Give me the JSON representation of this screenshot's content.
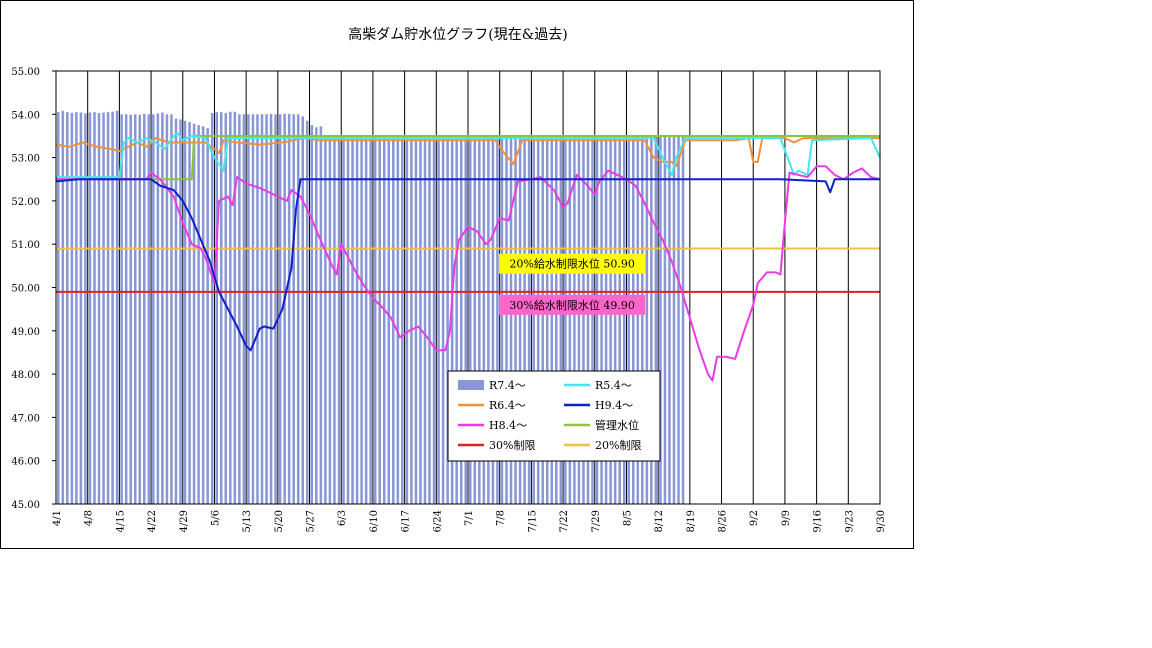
{
  "chart_data": {
    "type": "line",
    "title": "高柴ダム貯水位グラフ(現在&過去)",
    "ylim": [
      45.0,
      55.0
    ],
    "y_ticks": [
      "45.00",
      "46.00",
      "47.00",
      "48.00",
      "49.00",
      "50.00",
      "51.00",
      "52.00",
      "53.00",
      "54.00",
      "55.00"
    ],
    "x_ticks": [
      {
        "label": "4/1",
        "day": 0
      },
      {
        "label": "4/8",
        "day": 7
      },
      {
        "label": "4/15",
        "day": 14
      },
      {
        "label": "4/22",
        "day": 21
      },
      {
        "label": "4/29",
        "day": 28
      },
      {
        "label": "5/6",
        "day": 35
      },
      {
        "label": "5/13",
        "day": 42
      },
      {
        "label": "5/20",
        "day": 49
      },
      {
        "label": "5/27",
        "day": 56
      },
      {
        "label": "6/3",
        "day": 63
      },
      {
        "label": "6/10",
        "day": 70
      },
      {
        "label": "6/17",
        "day": 77
      },
      {
        "label": "6/24",
        "day": 84
      },
      {
        "label": "7/1",
        "day": 91
      },
      {
        "label": "7/8",
        "day": 98
      },
      {
        "label": "7/15",
        "day": 105
      },
      {
        "label": "7/22",
        "day": 112
      },
      {
        "label": "7/29",
        "day": 119
      },
      {
        "label": "8/5",
        "day": 126
      },
      {
        "label": "8/12",
        "day": 133
      },
      {
        "label": "8/19",
        "day": 140
      },
      {
        "label": "8/26",
        "day": 147
      },
      {
        "label": "9/2",
        "day": 154
      },
      {
        "label": "9/9",
        "day": 161
      },
      {
        "label": "9/16",
        "day": 168
      },
      {
        "label": "9/23",
        "day": 175
      },
      {
        "label": "9/30",
        "day": 182
      }
    ],
    "x_max_day": 182,
    "grid": "vertical",
    "legend_position": "bottom-center",
    "bars": {
      "name": "R7.4～",
      "color": "#8A97D6",
      "first_day": 0,
      "values": [
        54.05,
        54.08,
        54.05,
        54.03,
        54.05,
        54.04,
        54.02,
        54.04,
        54.05,
        54.03,
        54.04,
        54.05,
        54.06,
        54.08,
        54.0,
        54.0,
        53.99,
        54.0,
        53.99,
        54.01,
        54.0,
        54.0,
        54.02,
        54.04,
        54.0,
        54.0,
        53.9,
        53.88,
        53.85,
        53.82,
        53.78,
        53.75,
        53.72,
        53.68,
        54.03,
        54.05,
        54.05,
        54.03,
        54.06,
        54.06,
        54.0,
        54.0,
        54.0,
        54.0,
        54.0,
        54.0,
        54.0,
        54.01,
        54.0,
        54.0,
        54.01,
        54.01,
        54.0,
        54.0,
        53.95,
        53.85,
        53.75,
        53.7,
        53.72,
        53.5,
        53.5,
        53.5,
        53.5,
        53.5,
        53.5,
        53.5,
        53.5,
        53.5,
        53.5,
        53.5,
        53.5,
        53.5,
        53.5,
        53.5,
        53.5,
        53.5,
        53.5,
        53.5,
        53.5,
        53.5,
        53.5,
        53.5,
        53.5,
        53.5,
        53.5,
        53.5,
        53.5,
        53.5,
        53.5,
        53.5,
        53.5,
        53.5,
        53.5,
        53.5,
        53.5,
        53.5,
        53.5,
        53.5,
        53.5,
        53.5,
        53.5,
        53.5,
        53.5,
        53.5,
        53.5,
        53.5,
        53.5,
        53.5,
        53.5,
        53.5,
        53.5,
        53.5,
        53.5,
        53.5,
        53.5,
        53.5,
        53.5,
        53.5,
        53.5,
        53.5,
        53.5,
        53.5,
        53.5,
        53.5,
        53.5,
        53.5,
        53.5,
        53.5,
        53.5,
        53.5,
        53.5,
        53.5,
        53.5,
        53.5,
        53.5,
        53.5,
        53.5,
        53.5,
        53.5
      ]
    },
    "series": [
      {
        "name": "R5.4～",
        "color": "#44E6F0",
        "width": 2,
        "points": [
          [
            0,
            52.55
          ],
          [
            14,
            52.55
          ],
          [
            15,
            53.35
          ],
          [
            16,
            53.45
          ],
          [
            18,
            53.35
          ],
          [
            20,
            53.45
          ],
          [
            22,
            53.35
          ],
          [
            24,
            53.2
          ],
          [
            26,
            53.5
          ],
          [
            27,
            53.55
          ],
          [
            28,
            53.4
          ],
          [
            30,
            53.5
          ],
          [
            33,
            53.45
          ],
          [
            35,
            53.0
          ],
          [
            37,
            52.7
          ],
          [
            38,
            53.45
          ],
          [
            60,
            53.45
          ],
          [
            100,
            53.45
          ],
          [
            132,
            53.45
          ],
          [
            134,
            53.0
          ],
          [
            136,
            52.6
          ],
          [
            137,
            53.0
          ],
          [
            139,
            53.45
          ],
          [
            160,
            53.45
          ],
          [
            163,
            52.6
          ],
          [
            164,
            52.7
          ],
          [
            166,
            52.6
          ],
          [
            167,
            53.4
          ],
          [
            180,
            53.45
          ],
          [
            182,
            53.0
          ]
        ]
      },
      {
        "name": "R6.4～",
        "color": "#F0913C",
        "width": 2,
        "points": [
          [
            0,
            53.3
          ],
          [
            3,
            53.25
          ],
          [
            6,
            53.35
          ],
          [
            9,
            53.25
          ],
          [
            12,
            53.2
          ],
          [
            14,
            53.15
          ],
          [
            16,
            53.25
          ],
          [
            18,
            53.35
          ],
          [
            20,
            53.25
          ],
          [
            22,
            53.45
          ],
          [
            25,
            53.35
          ],
          [
            27,
            53.35
          ],
          [
            30,
            53.35
          ],
          [
            33,
            53.35
          ],
          [
            35,
            53.2
          ],
          [
            36,
            53.1
          ],
          [
            37,
            53.4
          ],
          [
            40,
            53.35
          ],
          [
            45,
            53.3
          ],
          [
            50,
            53.35
          ],
          [
            55,
            53.45
          ],
          [
            58,
            53.4
          ],
          [
            65,
            53.4
          ],
          [
            70,
            53.4
          ],
          [
            76,
            53.4
          ],
          [
            80,
            53.4
          ],
          [
            97,
            53.4
          ],
          [
            99,
            53.1
          ],
          [
            101,
            52.85
          ],
          [
            103,
            53.4
          ],
          [
            130,
            53.4
          ],
          [
            132,
            53.0
          ],
          [
            134,
            52.9
          ],
          [
            136,
            52.9
          ],
          [
            137,
            52.8
          ],
          [
            139,
            53.4
          ],
          [
            150,
            53.4
          ],
          [
            153,
            53.45
          ],
          [
            154,
            52.9
          ],
          [
            155,
            52.9
          ],
          [
            156,
            53.45
          ],
          [
            161,
            53.45
          ],
          [
            163,
            53.35
          ],
          [
            165,
            53.45
          ],
          [
            180,
            53.45
          ],
          [
            182,
            53.45
          ]
        ]
      },
      {
        "name": "H9.4～",
        "color": "#1020C8",
        "width": 2,
        "points": [
          [
            0,
            52.45
          ],
          [
            5,
            52.5
          ],
          [
            19,
            52.5
          ],
          [
            21,
            52.5
          ],
          [
            23,
            52.35
          ],
          [
            26,
            52.25
          ],
          [
            28,
            52.0
          ],
          [
            30,
            51.6
          ],
          [
            32,
            51.1
          ],
          [
            34,
            50.6
          ],
          [
            36,
            49.9
          ],
          [
            38,
            49.5
          ],
          [
            40,
            49.1
          ],
          [
            42,
            48.65
          ],
          [
            43,
            48.55
          ],
          [
            45,
            49.05
          ],
          [
            46,
            49.1
          ],
          [
            48,
            49.05
          ],
          [
            50,
            49.5
          ],
          [
            52,
            50.45
          ],
          [
            53,
            51.8
          ],
          [
            54,
            52.5
          ],
          [
            60,
            52.5
          ],
          [
            100,
            52.5
          ],
          [
            105,
            52.5
          ],
          [
            130,
            52.5
          ],
          [
            135,
            52.5
          ],
          [
            160,
            52.5
          ],
          [
            170,
            52.45
          ],
          [
            171,
            52.2
          ],
          [
            172,
            52.5
          ],
          [
            182,
            52.5
          ]
        ]
      },
      {
        "name": "H8.4～",
        "color": "#E83CE6",
        "width": 2,
        "points": [
          [
            0,
            52.5
          ],
          [
            14,
            52.5
          ],
          [
            20,
            52.5
          ],
          [
            21,
            52.65
          ],
          [
            23,
            52.5
          ],
          [
            26,
            52.1
          ],
          [
            28,
            51.5
          ],
          [
            30,
            51.0
          ],
          [
            32,
            50.9
          ],
          [
            33,
            50.7
          ],
          [
            35,
            50.1
          ],
          [
            36,
            52.0
          ],
          [
            38,
            52.1
          ],
          [
            39,
            51.9
          ],
          [
            40,
            52.55
          ],
          [
            42,
            52.4
          ],
          [
            45,
            52.3
          ],
          [
            48,
            52.15
          ],
          [
            51,
            52.0
          ],
          [
            52,
            52.25
          ],
          [
            54,
            52.1
          ],
          [
            56,
            51.7
          ],
          [
            58,
            51.2
          ],
          [
            61,
            50.5
          ],
          [
            62,
            50.3
          ],
          [
            63,
            51.0
          ],
          [
            64,
            50.8
          ],
          [
            66,
            50.4
          ],
          [
            68,
            50.05
          ],
          [
            70,
            49.75
          ],
          [
            72,
            49.55
          ],
          [
            74,
            49.3
          ],
          [
            76,
            48.85
          ],
          [
            78,
            49.0
          ],
          [
            80,
            49.1
          ],
          [
            82,
            48.85
          ],
          [
            84,
            48.55
          ],
          [
            86,
            48.55
          ],
          [
            87,
            49.0
          ],
          [
            88,
            50.5
          ],
          [
            89,
            51.1
          ],
          [
            91,
            51.4
          ],
          [
            93,
            51.3
          ],
          [
            95,
            51.0
          ],
          [
            96,
            51.1
          ],
          [
            98,
            51.6
          ],
          [
            100,
            51.55
          ],
          [
            102,
            52.45
          ],
          [
            105,
            52.5
          ],
          [
            107,
            52.55
          ],
          [
            110,
            52.25
          ],
          [
            112,
            51.85
          ],
          [
            113,
            51.95
          ],
          [
            115,
            52.6
          ],
          [
            117,
            52.4
          ],
          [
            119,
            52.15
          ],
          [
            120,
            52.45
          ],
          [
            122,
            52.7
          ],
          [
            124,
            52.6
          ],
          [
            126,
            52.5
          ],
          [
            128,
            52.35
          ],
          [
            130,
            51.95
          ],
          [
            132,
            51.5
          ],
          [
            134,
            51.1
          ],
          [
            136,
            50.6
          ],
          [
            138,
            50.0
          ],
          [
            140,
            49.3
          ],
          [
            142,
            48.6
          ],
          [
            144,
            48.0
          ],
          [
            145,
            47.85
          ],
          [
            146,
            48.4
          ],
          [
            148,
            48.4
          ],
          [
            150,
            48.35
          ],
          [
            152,
            49.0
          ],
          [
            154,
            49.6
          ],
          [
            155,
            50.1
          ],
          [
            157,
            50.35
          ],
          [
            159,
            50.35
          ],
          [
            160,
            50.3
          ],
          [
            161,
            51.5
          ],
          [
            162,
            52.65
          ],
          [
            164,
            52.6
          ],
          [
            166,
            52.55
          ],
          [
            168,
            52.8
          ],
          [
            170,
            52.8
          ],
          [
            172,
            52.6
          ],
          [
            174,
            52.5
          ],
          [
            176,
            52.65
          ],
          [
            178,
            52.75
          ],
          [
            180,
            52.55
          ],
          [
            182,
            52.5
          ]
        ]
      },
      {
        "name": "管理水位",
        "color": "#8CC43C",
        "width": 2,
        "points": [
          [
            0,
            52.5
          ],
          [
            30,
            52.5
          ],
          [
            30.5,
            53.5
          ],
          [
            182,
            53.5
          ]
        ]
      },
      {
        "name": "30%制限",
        "color": "#E02020",
        "width": 2,
        "points": [
          [
            0,
            49.9
          ],
          [
            182,
            49.9
          ]
        ]
      },
      {
        "name": "20%制限",
        "color": "#F0C040",
        "width": 2,
        "points": [
          [
            0,
            50.9
          ],
          [
            182,
            50.9
          ]
        ]
      }
    ],
    "annotations": [
      {
        "text": "20%給水制限水位  50.90",
        "bg": "#FFFF00",
        "anchor_day": 114,
        "anchor_y": 50.55
      },
      {
        "text": "30%給水制限水位  49.90",
        "bg": "#FF66CC",
        "anchor_day": 114,
        "anchor_y": 49.6
      }
    ],
    "legend": [
      {
        "name": "R7.4～",
        "kind": "bar",
        "color": "#8A97D6"
      },
      {
        "name": "R5.4～",
        "kind": "line",
        "color": "#44E6F0"
      },
      {
        "name": "R6.4～",
        "kind": "line",
        "color": "#F0913C"
      },
      {
        "name": "H9.4～",
        "kind": "line",
        "color": "#1020C8"
      },
      {
        "name": "H8.4～",
        "kind": "line",
        "color": "#E83CE6"
      },
      {
        "name": "管理水位",
        "kind": "line",
        "color": "#8CC43C"
      },
      {
        "name": "30%制限",
        "kind": "line",
        "color": "#E02020"
      },
      {
        "name": "20%制限",
        "kind": "line",
        "color": "#F0C040"
      }
    ]
  }
}
